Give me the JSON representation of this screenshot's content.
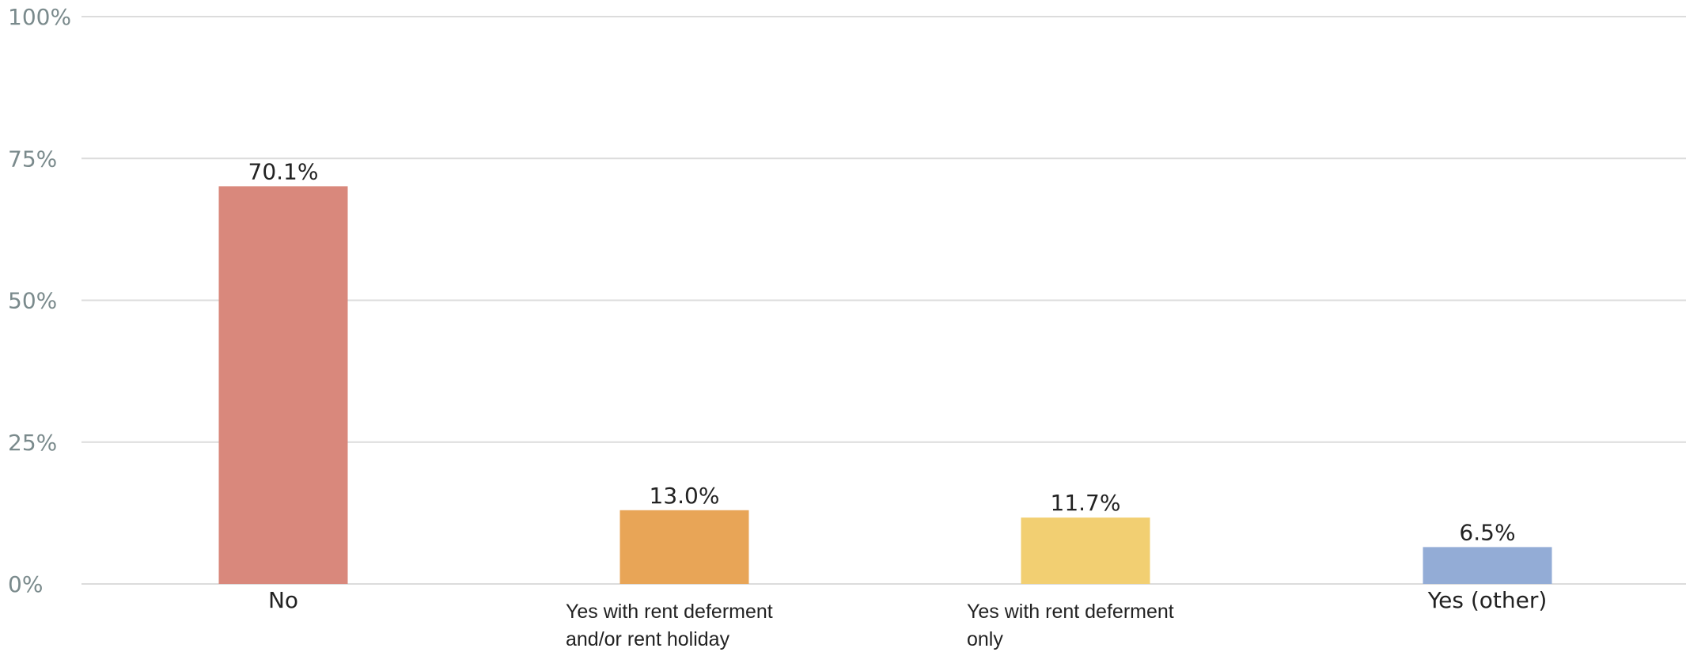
{
  "chart_data": {
    "type": "bar",
    "title": "",
    "xlabel": "",
    "ylabel": "",
    "categories": [
      "No",
      "Yes with rent deferment and/or rent holiday",
      "Yes with rent deferment only",
      "Yes (other)"
    ],
    "category_lines": [
      [
        "No"
      ],
      [
        "Yes with rent deferment",
        "and/or rent holiday"
      ],
      [
        "Yes with rent deferment",
        "only"
      ],
      [
        "Yes (other)"
      ]
    ],
    "values": [
      70.1,
      13.0,
      11.7,
      6.5
    ],
    "value_labels": [
      "70.1%",
      "13.0%",
      "11.7%",
      "6.5%"
    ],
    "colors": [
      "#d9887c",
      "#e8a557",
      "#f2cf72",
      "#93acd6"
    ],
    "ylim": [
      0,
      100
    ],
    "yticks": [
      0,
      25,
      50,
      75,
      100
    ],
    "ytick_labels": [
      "0%",
      "25%",
      "50%",
      "75%",
      "100%"
    ],
    "grid": true,
    "legend": "none"
  }
}
